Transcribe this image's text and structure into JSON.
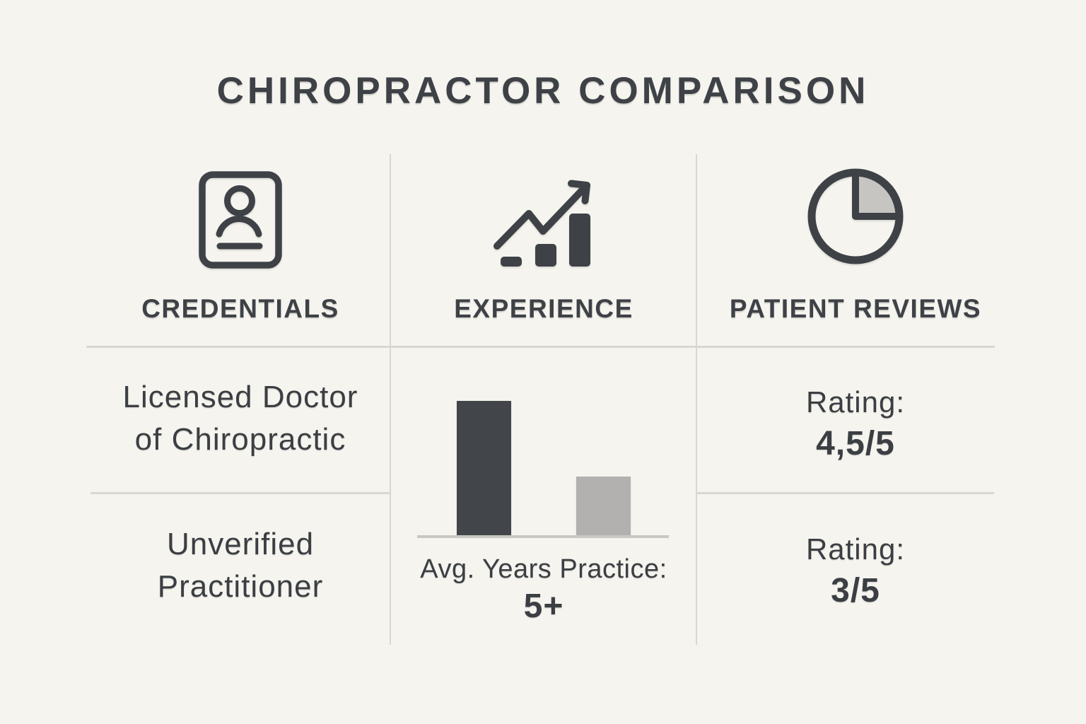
{
  "title": "CHIROPRACTOR COMPARISON",
  "colors": {
    "background": "#F6F4EF",
    "ink": "#3E4247",
    "text": "#3B3F43",
    "divider": "#D9D7D2",
    "baseline": "#C9C7C2",
    "bar_dark": "#42464A",
    "bar_light": "#B2B1AF",
    "pie_slice_fill": "#C6C5C2"
  },
  "columns": {
    "credentials": {
      "header": "CREDENTIALS",
      "icon": "id-card-person-icon",
      "rows": [
        [
          "Licensed Doctor",
          "of Chiropractic"
        ],
        [
          "Unverified",
          "Practitioner"
        ]
      ]
    },
    "experience": {
      "header": "EXPERIENCE",
      "icon": "trending-up-bar-chart-icon",
      "caption_label": "Avg. Years Practice:",
      "caption_value": "5+"
    },
    "reviews": {
      "header": "PATIENT REVIEWS",
      "icon": "pie-chart-icon",
      "rows": [
        {
          "label": "Rating:",
          "value": "4,5/5"
        },
        {
          "label": "Rating:",
          "value": "3/5"
        }
      ]
    }
  },
  "chart_data": {
    "type": "bar",
    "title": "Avg. Years Practice: 5+",
    "categories": [
      "Licensed Doctor of Chiropractic",
      "Unverified Practitioner"
    ],
    "values": [
      5,
      2.2
    ],
    "ylim": [
      0,
      5
    ],
    "bar_colors": [
      "#42464A",
      "#B2B1AF"
    ],
    "value_label": "5+",
    "axes": "baseline only, no ticks, no gridlines",
    "legend": "none"
  }
}
